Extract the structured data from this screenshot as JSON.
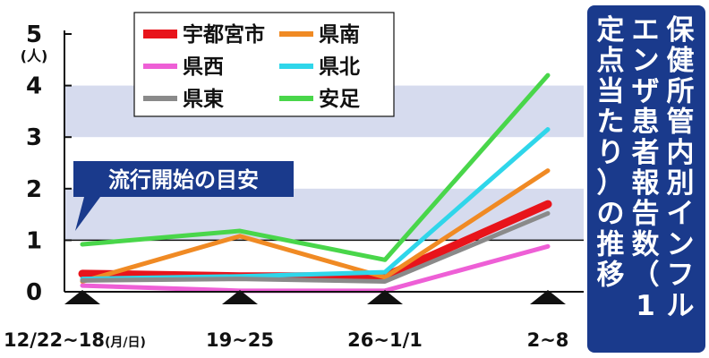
{
  "chart_data": {
    "type": "line",
    "title": "保健所管内別インフルエンザ患者報告数（1定点当たり）の推移",
    "title_columns": [
      "保健所管内別インフル",
      "エンザ患者報告数（1",
      "定点当たり）の推移"
    ],
    "ylabel": "(人)",
    "ylim": [
      0,
      5
    ],
    "yticks": [
      "0",
      "1",
      "2",
      "3",
      "4",
      "5"
    ],
    "x": [
      0,
      1,
      2,
      3
    ],
    "xtick_labels": [
      {
        "main": "12/22~18",
        "suffix": "(月/日)"
      },
      {
        "main": "19~25",
        "suffix": ""
      },
      {
        "main": "26~1/1",
        "suffix": ""
      },
      {
        "main": "2~8",
        "suffix": ""
      }
    ],
    "series": [
      {
        "name": "宇都宮市",
        "color": "#e8141b",
        "values": [
          0.35,
          0.3,
          0.3,
          1.7
        ],
        "width": 9
      },
      {
        "name": "県南",
        "color": "#f08a24",
        "values": [
          0.2,
          1.08,
          0.28,
          2.35
        ],
        "width": 5
      },
      {
        "name": "県西",
        "color": "#ee5fd6",
        "values": [
          0.12,
          0.02,
          0.02,
          0.88
        ],
        "width": 5
      },
      {
        "name": "県北",
        "color": "#2fd6ea",
        "values": [
          0.25,
          0.3,
          0.38,
          3.15
        ],
        "width": 5
      },
      {
        "name": "県東",
        "color": "#8a8a8a",
        "values": [
          0.22,
          0.25,
          0.2,
          1.52
        ],
        "width": 5
      },
      {
        "name": "安足",
        "color": "#49d64a",
        "values": [
          0.92,
          1.18,
          0.62,
          4.2
        ],
        "width": 5
      }
    ],
    "reference_line": {
      "value": 1,
      "label": "流行開始の目安"
    },
    "grid": "horizontal bands",
    "legend": "top-left"
  },
  "colors": {
    "band": "#d6dbee",
    "callout": "#1a3a8c",
    "title_bg": "#1a3a8c",
    "axis": "#111111"
  }
}
